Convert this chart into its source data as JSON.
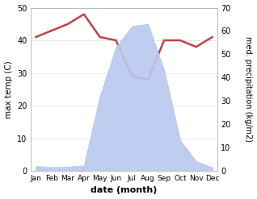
{
  "months": [
    "Jan",
    "Feb",
    "Mar",
    "Apr",
    "May",
    "Jun",
    "Jul",
    "Aug",
    "Sep",
    "Oct",
    "Nov",
    "Dec"
  ],
  "x": [
    0,
    1,
    2,
    3,
    4,
    5,
    6,
    7,
    8,
    9,
    10,
    11
  ],
  "temperature": [
    41,
    43,
    45,
    48,
    41,
    40,
    29,
    28,
    40,
    40,
    38,
    41
  ],
  "precipitation": [
    20,
    15,
    17,
    22,
    320,
    530,
    620,
    630,
    430,
    130,
    40,
    15
  ],
  "temp_color": "#c0404a",
  "precip_color": "#b8c8f0",
  "left_ylim": [
    0,
    50
  ],
  "right_ylim": [
    0,
    700
  ],
  "right_yticks": [
    0,
    100,
    200,
    300,
    400,
    500,
    600,
    700
  ],
  "right_yticklabels": [
    "0",
    "10",
    "20",
    "30",
    "40",
    "50",
    "60",
    "70"
  ],
  "left_yticks": [
    0,
    10,
    20,
    30,
    40,
    50
  ],
  "xlabel": "date (month)",
  "ylabel_left": "max temp (C)",
  "ylabel_right": "med. precipitation (kg/m2)",
  "bg_color": "#ffffff",
  "grid_color": "#dddddd"
}
